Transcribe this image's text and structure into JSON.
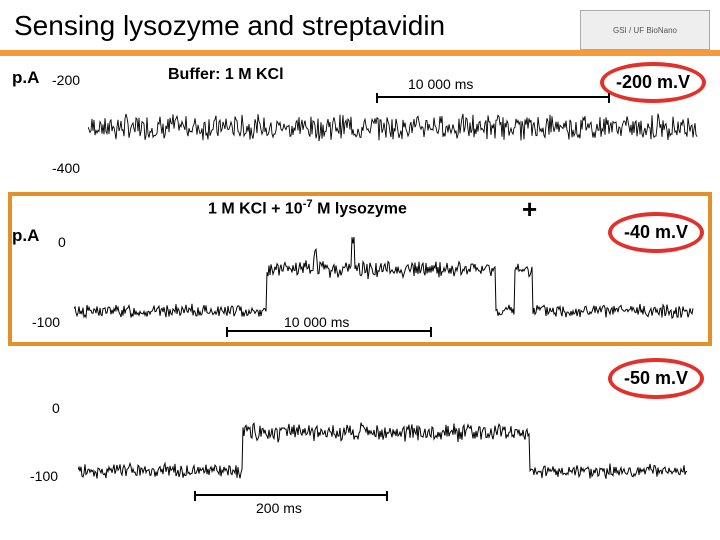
{
  "title": "Sensing lysozyme and streptavidin",
  "logo_text": "GSI / UF BioNano",
  "colors": {
    "orange_bar": "#f59b3e",
    "orange_border": "#e2912a",
    "red_border": "#e2312a",
    "trace": "#000000",
    "bg": "#ffffff"
  },
  "panel1": {
    "unit": "p.A",
    "yticks": [
      -200,
      -400
    ],
    "label": "Buffer: 1 M KCl",
    "timebar": "10 000 ms",
    "voltage": "-200 m.V",
    "baseline": -300,
    "noise_amp": 28,
    "ylim": [
      -420,
      -180
    ],
    "trace_color": "#000000"
  },
  "panel2": {
    "unit": "p.A",
    "yticks": [
      0,
      -100
    ],
    "label_html": "1 M KCl + 10<span class=\"sup\">-7</span> M lysozyme",
    "timebar": "10 000 ms",
    "voltage": "-40 m.V",
    "plus": "+",
    "segments": [
      {
        "from": 0,
        "to": 0.31,
        "level": -80,
        "noise": 6
      },
      {
        "from": 0.31,
        "to": 0.68,
        "level": -30,
        "noise": 8
      },
      {
        "from": 0.68,
        "to": 0.71,
        "level": -80,
        "noise": 6
      },
      {
        "from": 0.71,
        "to": 0.74,
        "level": -30,
        "noise": 7
      },
      {
        "from": 0.74,
        "to": 1.0,
        "level": -80,
        "noise": 6
      }
    ],
    "spikes": [
      {
        "x": 0.45,
        "h": 40
      },
      {
        "x": 0.39,
        "h": 20
      }
    ],
    "ylim": [
      -110,
      20
    ],
    "trace_color": "#000000"
  },
  "panel3": {
    "yticks": [
      0,
      -100
    ],
    "timebar": "200 ms",
    "voltage": "-50 m.V",
    "segments": [
      {
        "from": 0,
        "to": 0.27,
        "level": -80,
        "noise": 7
      },
      {
        "from": 0.27,
        "to": 0.74,
        "level": -30,
        "noise": 9
      },
      {
        "from": 0.74,
        "to": 1.0,
        "level": -80,
        "noise": 7
      }
    ],
    "ylim": [
      -110,
      20
    ],
    "trace_color": "#000000"
  }
}
